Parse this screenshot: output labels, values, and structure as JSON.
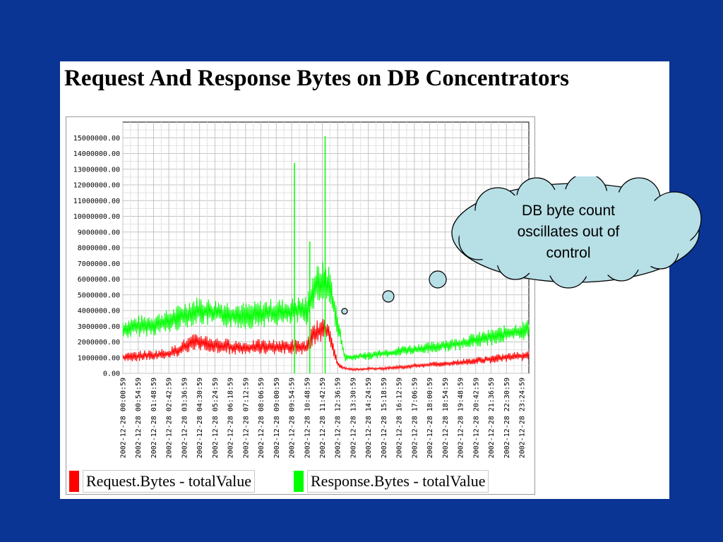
{
  "chart_data": {
    "type": "line",
    "title": "Request And Response Bytes on DB Concentrators",
    "xlabel": "",
    "ylabel": "",
    "ylim": [
      0,
      16000000
    ],
    "y_ticks": [
      "0.00",
      "1000000.00",
      "2000000.00",
      "3000000.00",
      "4000000.00",
      "5000000.00",
      "6000000.00",
      "7000000.00",
      "8000000.00",
      "9000000.00",
      "10000000.00",
      "11000000.00",
      "12000000.00",
      "13000000.00",
      "14000000.00",
      "15000000.00"
    ],
    "x_ticks": [
      "2002-12-28 00:00:59",
      "2002-12-28 00:54:59",
      "2002-12-28 01:48:59",
      "2002-12-28 02:42:59",
      "2002-12-28 03:36:59",
      "2002-12-28 04:30:59",
      "2002-12-28 05:24:59",
      "2002-12-28 06:18:59",
      "2002-12-28 07:12:59",
      "2002-12-28 08:06:59",
      "2002-12-28 09:00:59",
      "2002-12-28 09:54:59",
      "2002-12-28 10:48:59",
      "2002-12-28 11:42:59",
      "2002-12-28 12:36:59",
      "2002-12-28 13:30:59",
      "2002-12-28 14:24:59",
      "2002-12-28 15:18:59",
      "2002-12-28 16:12:59",
      "2002-12-28 17:06:59",
      "2002-12-28 18:00:59",
      "2002-12-28 18:54:59",
      "2002-12-28 19:48:59",
      "2002-12-28 20:42:59",
      "2002-12-28 21:36:59",
      "2002-12-28 22:30:59",
      "2002-12-28 23:24:59"
    ],
    "grid": true,
    "legend_position": "bottom",
    "series": [
      {
        "name": "Request.Bytes - totalValue",
        "color": "#ff0000",
        "values": [
          1000000,
          1050000,
          1100000,
          1150000,
          1150000,
          1200000,
          1250000,
          1450000,
          1700000,
          1900000,
          2000000,
          1900000,
          1800000,
          1750000,
          1700000,
          1650000,
          1600000,
          1650000,
          1700000,
          1650000,
          1700000,
          1650000,
          1700000,
          1650000,
          1650000,
          2600000,
          2700000,
          2600000,
          600000,
          300000,
          250000,
          250000,
          300000,
          300000,
          300000,
          350000,
          400000,
          400000,
          500000,
          500000,
          550000,
          600000,
          600000,
          650000,
          700000,
          750000,
          800000,
          850000,
          900000,
          950000,
          1000000,
          1050000,
          1100000,
          1150000
        ]
      },
      {
        "name": "Response.Bytes - totalValue",
        "color": "#00ff00",
        "values": [
          2800000,
          2900000,
          3000000,
          3050000,
          3100000,
          3200000,
          3300000,
          3500000,
          3700000,
          3900000,
          4000000,
          3900000,
          3850000,
          3800000,
          3750000,
          3700000,
          3650000,
          3700000,
          3800000,
          3850000,
          3900000,
          3850000,
          3900000,
          4000000,
          4000000,
          5500000,
          5800000,
          5600000,
          3200000,
          1000000,
          1000000,
          1100000,
          1100000,
          1200000,
          1300000,
          1300000,
          1400000,
          1500000,
          1500000,
          1600000,
          1600000,
          1700000,
          1800000,
          1800000,
          1900000,
          2000000,
          2100000,
          2200000,
          2300000,
          2400000,
          2500000,
          2600000,
          2700000,
          2800000
        ]
      }
    ],
    "spikes": [
      {
        "series": "Response.Bytes - totalValue",
        "x": "2002-12-28 09:54:59",
        "y": 13400000
      },
      {
        "series": "Response.Bytes - totalValue",
        "x": "2002-12-28 10:48:59",
        "y": 8400000
      },
      {
        "series": "Response.Bytes - totalValue",
        "x": "2002-12-28 11:42:59",
        "y": 15100000
      }
    ]
  },
  "callout": {
    "text": "DB byte count oscillates out of control",
    "fill": "#b7dfe6"
  }
}
